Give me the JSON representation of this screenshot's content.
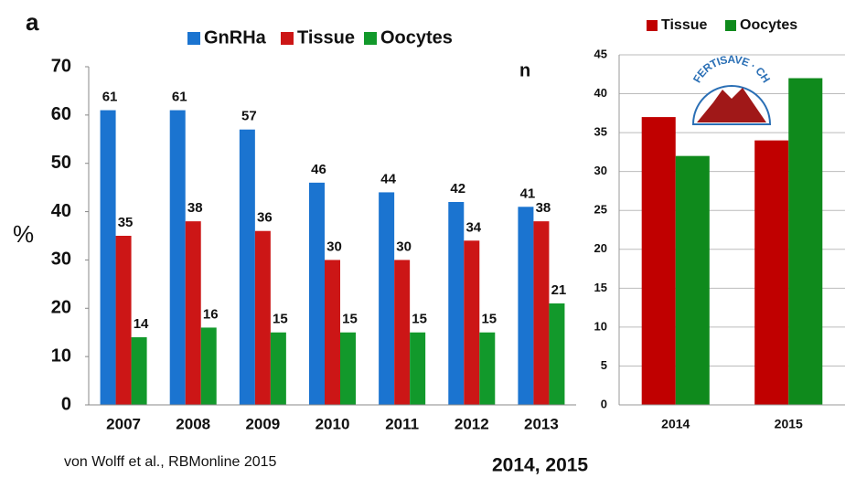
{
  "chart_data": [
    {
      "type": "bar",
      "panel_label": "a",
      "ylabel": "%",
      "note": "von Wolff et al., RBMonline 2015",
      "categories": [
        "2007",
        "2008",
        "2009",
        "2010",
        "2011",
        "2012",
        "2013"
      ],
      "series": [
        {
          "name": "GnRHa",
          "color": "#1b74d0",
          "values": [
            61,
            61,
            57,
            46,
            44,
            42,
            41
          ]
        },
        {
          "name": "Tissue",
          "color": "#cc1616",
          "values": [
            35,
            38,
            36,
            30,
            30,
            34,
            38
          ]
        },
        {
          "name": "Oocytes",
          "color": "#12992b",
          "values": [
            14,
            16,
            15,
            15,
            15,
            15,
            21
          ]
        }
      ],
      "ylim": [
        0,
        70
      ],
      "yticks": [
        0,
        10,
        20,
        30,
        40,
        50,
        60,
        70
      ],
      "grid": false,
      "data_labels": true,
      "legend": "top"
    },
    {
      "type": "bar",
      "panel_label": "n",
      "caption": "2014, 2015",
      "logo_text": "FERTISAVE · CH",
      "categories": [
        "2014",
        "2015"
      ],
      "series": [
        {
          "name": "Tissue",
          "color": "#c00000",
          "values": [
            37,
            34
          ]
        },
        {
          "name": "Oocytes",
          "color": "#0f8a1c",
          "values": [
            32,
            42
          ]
        }
      ],
      "ylim": [
        0,
        45
      ],
      "yticks": [
        0,
        5,
        10,
        15,
        20,
        25,
        30,
        35,
        40,
        45
      ],
      "grid": true,
      "data_labels": false,
      "legend": "top"
    }
  ]
}
